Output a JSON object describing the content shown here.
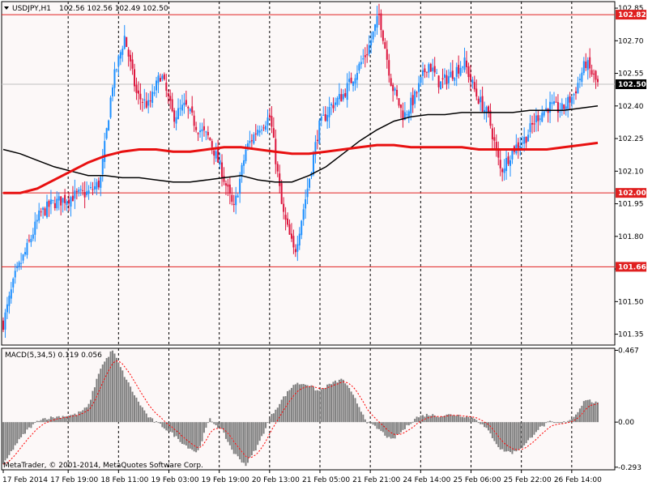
{
  "header": {
    "symbol_label": "USDJPY,H1",
    "ohlc_label": "102.56 102.56 102.49 102.50",
    "macd_label": "MACD(5,34,5) 0.119 0.056"
  },
  "footer": {
    "copyright": "MetaTrader, © 2001-2014, MetaQuotes Software Corp."
  },
  "colors": {
    "background": "#FCF8F8",
    "bull_candle": "#1E90FF",
    "bear_candle": "#DC143C",
    "grid": "#000000",
    "ma_slow": "#000000",
    "ma_fast": "#E81010",
    "level_line": "#E02020",
    "macd_hist": "#808080",
    "macd_signal": "#FF0000"
  },
  "icons": {
    "menu": "triangle-down-icon"
  },
  "chart_data": [
    {
      "type": "candlestick",
      "title": "USDJPY,H1",
      "ylim": [
        101.3,
        102.88
      ],
      "y_ticks": [
        "102.85",
        "102.70",
        "102.55",
        "102.40",
        "102.25",
        "102.10",
        "101.95",
        "101.80",
        "101.65",
        "101.50",
        "101.35"
      ],
      "x_labels": [
        "17 Feb 2014",
        "17 Feb 19:00",
        "18 Feb 11:00",
        "19 Feb 03:00",
        "19 Feb 19:00",
        "20 Feb 13:00",
        "21 Feb 05:00",
        "21 Feb 21:00",
        "24 Feb 14:00",
        "25 Feb 06:00",
        "25 Feb 22:00",
        "26 Feb 14:00"
      ],
      "last_price": "102.50",
      "levels": [
        "102.82",
        "102.00",
        "101.66"
      ],
      "close_path": [
        101.4,
        101.62,
        101.75,
        101.9,
        101.95,
        101.97,
        101.99,
        102.0,
        102.05,
        102.5,
        102.72,
        102.45,
        102.4,
        102.55,
        102.35,
        102.4,
        102.3,
        102.25,
        102.1,
        101.92,
        102.2,
        102.3,
        102.35,
        101.92,
        101.72,
        102.0,
        102.3,
        102.4,
        102.45,
        102.55,
        102.65,
        102.82,
        102.5,
        102.35,
        102.45,
        102.6,
        102.5,
        102.55,
        102.6,
        102.45,
        102.35,
        102.1,
        102.2,
        102.25,
        102.35,
        102.4,
        102.38,
        102.45,
        102.6,
        102.5
      ],
      "ma_fast": [
        102.0,
        102.0,
        102.02,
        102.06,
        102.1,
        102.14,
        102.17,
        102.19,
        102.2,
        102.2,
        102.19,
        102.19,
        102.2,
        102.21,
        102.21,
        102.2,
        102.19,
        102.18,
        102.18,
        102.19,
        102.2,
        102.21,
        102.22,
        102.22,
        102.21,
        102.21,
        102.21,
        102.21,
        102.2,
        102.2,
        102.2,
        102.2,
        102.2,
        102.21,
        102.22,
        102.23
      ],
      "ma_slow": [
        102.2,
        102.18,
        102.15,
        102.12,
        102.1,
        102.08,
        102.08,
        102.07,
        102.07,
        102.06,
        102.05,
        102.05,
        102.06,
        102.07,
        102.08,
        102.06,
        102.05,
        102.05,
        102.08,
        102.12,
        102.18,
        102.24,
        102.29,
        102.33,
        102.35,
        102.36,
        102.36,
        102.37,
        102.37,
        102.37,
        102.37,
        102.38,
        102.38,
        102.38,
        102.39,
        102.4
      ]
    },
    {
      "type": "bar",
      "title": "MACD(5,34,5) 0.119 0.056",
      "ylim": [
        -0.31,
        0.48
      ],
      "y_ticks": [
        "0.467",
        "0.00",
        "-0.293"
      ],
      "macd_path": [
        -0.28,
        -0.15,
        -0.05,
        0.02,
        0.03,
        0.04,
        0.05,
        0.1,
        0.35,
        0.47,
        0.3,
        0.15,
        0.03,
        -0.02,
        -0.08,
        -0.15,
        -0.2,
        0.02,
        -0.05,
        -0.2,
        -0.28,
        -0.15,
        0.03,
        0.15,
        0.25,
        0.25,
        0.2,
        0.25,
        0.28,
        0.15,
        0.0,
        -0.05,
        -0.12,
        -0.05,
        0.03,
        0.05,
        0.04,
        0.05,
        0.04,
        0.02,
        -0.06,
        -0.18,
        -0.2,
        -0.15,
        -0.05,
        0.0,
        -0.01,
        0.03,
        0.15,
        0.12
      ]
    }
  ]
}
